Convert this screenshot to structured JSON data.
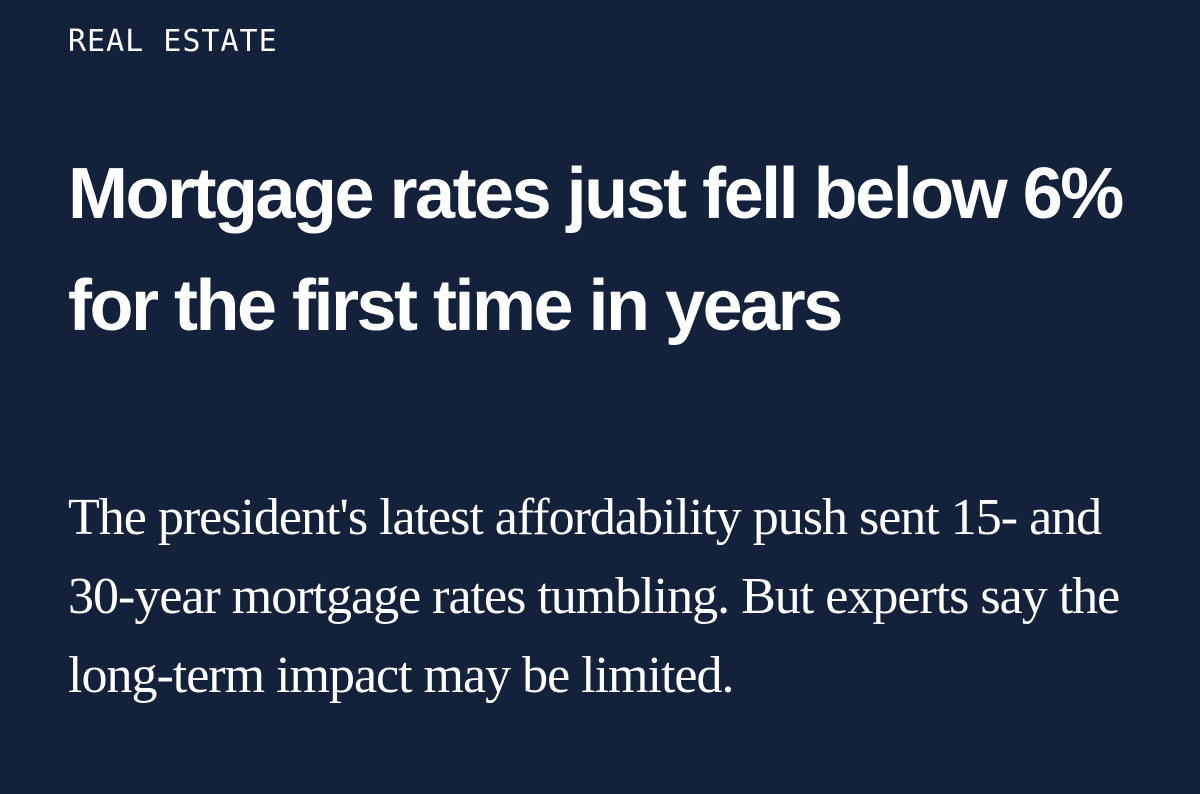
{
  "article": {
    "category": "REAL ESTATE",
    "headline": "Mortgage rates just fell below 6% for the first time in years",
    "dek": "The president's latest affordability push sent 15- and 30-year mortgage rates tumbling. But experts say the long-term impact may be limited."
  },
  "colors": {
    "background": "#13213b",
    "text": "#ffffff"
  }
}
